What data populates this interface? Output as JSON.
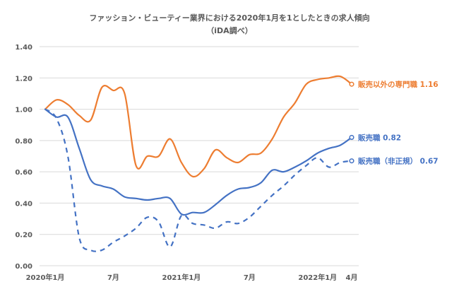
{
  "chart_data": {
    "type": "line",
    "title": "ファッション・ビューティー業界における2020年1月を1としたときの求人傾向",
    "subtitle": "（iDA調べ）",
    "xlabel": "",
    "ylabel": "",
    "ylim": [
      0,
      1.4
    ],
    "yticks": [
      "0.00",
      "0.20",
      "0.40",
      "0.60",
      "0.80",
      "1.00",
      "1.20",
      "1.40"
    ],
    "ytick_values": [
      0,
      0.2,
      0.4,
      0.6,
      0.8,
      1.0,
      1.2,
      1.4
    ],
    "grid": true,
    "x_months": 28,
    "xticks": [
      {
        "index": 0,
        "label": "2020年1月"
      },
      {
        "index": 6,
        "label": "7月"
      },
      {
        "index": 12,
        "label": "2021年1月"
      },
      {
        "index": 18,
        "label": "7月"
      },
      {
        "index": 24,
        "label": "2022年1月"
      },
      {
        "index": 27,
        "label": "4月"
      }
    ],
    "series": [
      {
        "name": "販売以外の専門職",
        "end_label": "販売以外の専門職 1.16",
        "color": "#ED7D31",
        "dashed": false,
        "values": [
          1.0,
          1.06,
          1.03,
          0.96,
          0.93,
          1.14,
          1.12,
          1.1,
          0.64,
          0.7,
          0.7,
          0.81,
          0.66,
          0.57,
          0.62,
          0.74,
          0.69,
          0.66,
          0.71,
          0.72,
          0.81,
          0.95,
          1.04,
          1.16,
          1.19,
          1.2,
          1.21,
          1.16
        ]
      },
      {
        "name": "販売職",
        "end_label": "販売職 0.82",
        "color": "#4472C4",
        "dashed": false,
        "values": [
          1.0,
          0.95,
          0.95,
          0.75,
          0.55,
          0.51,
          0.49,
          0.44,
          0.43,
          0.42,
          0.43,
          0.43,
          0.33,
          0.34,
          0.34,
          0.39,
          0.45,
          0.49,
          0.5,
          0.53,
          0.61,
          0.6,
          0.63,
          0.67,
          0.72,
          0.75,
          0.77,
          0.82
        ]
      },
      {
        "name": "販売職（非正規）",
        "end_label": "販売職（非正規） 0.67",
        "color": "#4472C4",
        "dashed": true,
        "values": [
          1.0,
          0.94,
          0.7,
          0.18,
          0.1,
          0.1,
          0.15,
          0.19,
          0.24,
          0.31,
          0.28,
          0.12,
          0.32,
          0.27,
          0.26,
          0.24,
          0.28,
          0.27,
          0.31,
          0.38,
          0.45,
          0.51,
          0.58,
          0.64,
          0.69,
          0.63,
          0.66,
          0.67
        ]
      }
    ]
  }
}
